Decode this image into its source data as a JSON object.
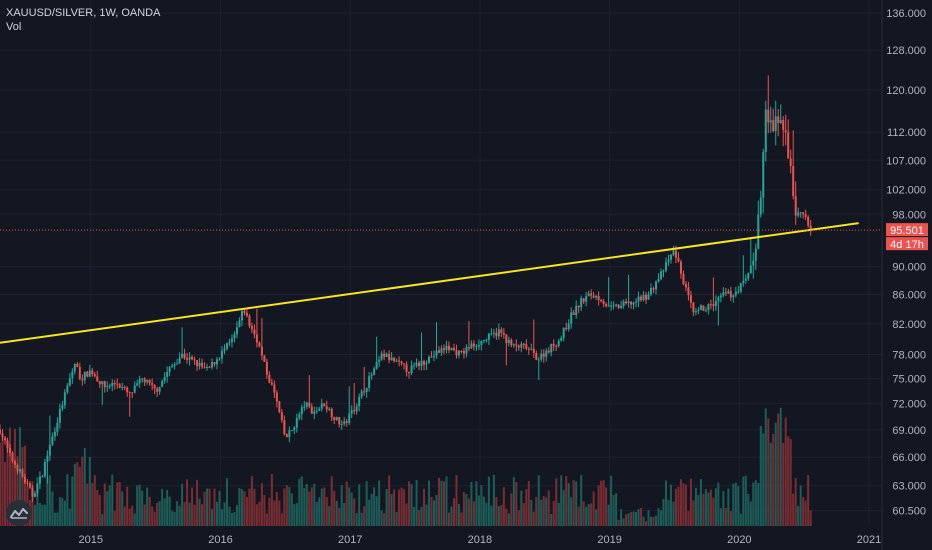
{
  "header": {
    "symbol_line": "XAUUSD/SILVER, 1W, OANDA",
    "indicator": "Vol"
  },
  "colors": {
    "background": "#131722",
    "grid": "#1e2230",
    "up": "#26a69a",
    "down": "#ef5350",
    "vol_up": "#1e5e58",
    "vol_down": "#7a2e33",
    "trendline": "#f5e71b",
    "price_line": "#ef5350",
    "axis_text": "#b2b5be"
  },
  "chart_data": {
    "type": "candlestick",
    "x_ticks": [
      "2015",
      "2016",
      "2017",
      "2018",
      "2019",
      "2020",
      "2021"
    ],
    "y_ticks": [
      136.0,
      128.0,
      120.0,
      112.0,
      107.0,
      102.0,
      98.0,
      90.0,
      86.0,
      82.0,
      78.0,
      75.0,
      72.0,
      69.0,
      66.0,
      63.0,
      60.5
    ],
    "y_tick_labels": [
      "136.000",
      "128.000",
      "120.000",
      "112.000",
      "107.000",
      "102.000",
      "98.000",
      "90.000",
      "86.000",
      "82.000",
      "78.000",
      "75.000",
      "72.000",
      "69.000",
      "66.000",
      "63.000",
      "60.500"
    ],
    "y_scale": "log",
    "ylim": [
      59.0,
      138.0
    ],
    "xlim": [
      2014.3,
      2021.1
    ],
    "last_price": 95.501,
    "last_price_label": "95.501",
    "countdown_label": "4d 17h",
    "trendline": [
      [
        2014.3,
        79.5
      ],
      [
        2020.92,
        96.6
      ]
    ],
    "anchors": [
      [
        2014.3,
        69
      ],
      [
        2014.38,
        66
      ],
      [
        2014.45,
        64.5
      ],
      [
        2014.55,
        62
      ],
      [
        2014.62,
        64
      ],
      [
        2014.72,
        69
      ],
      [
        2014.8,
        73
      ],
      [
        2014.88,
        77
      ],
      [
        2014.92,
        75
      ],
      [
        2015.0,
        76
      ],
      [
        2015.1,
        74
      ],
      [
        2015.2,
        74.5
      ],
      [
        2015.3,
        73
      ],
      [
        2015.4,
        75
      ],
      [
        2015.5,
        73.5
      ],
      [
        2015.6,
        76
      ],
      [
        2015.7,
        78
      ],
      [
        2015.8,
        77
      ],
      [
        2015.9,
        76
      ],
      [
        2016.0,
        78
      ],
      [
        2016.1,
        80
      ],
      [
        2016.18,
        84
      ],
      [
        2016.22,
        82
      ],
      [
        2016.28,
        80
      ],
      [
        2016.35,
        76
      ],
      [
        2016.42,
        73
      ],
      [
        2016.5,
        68
      ],
      [
        2016.55,
        69
      ],
      [
        2016.65,
        72
      ],
      [
        2016.72,
        71
      ],
      [
        2016.8,
        72
      ],
      [
        2016.9,
        70
      ],
      [
        2016.95,
        69.5
      ],
      [
        2017.05,
        72
      ],
      [
        2017.15,
        75
      ],
      [
        2017.25,
        78
      ],
      [
        2017.35,
        77
      ],
      [
        2017.45,
        76
      ],
      [
        2017.55,
        77
      ],
      [
        2017.65,
        78
      ],
      [
        2017.75,
        79
      ],
      [
        2017.85,
        78
      ],
      [
        2017.92,
        79
      ],
      [
        2018.05,
        80
      ],
      [
        2018.15,
        81
      ],
      [
        2018.25,
        79
      ],
      [
        2018.35,
        79
      ],
      [
        2018.45,
        77.5
      ],
      [
        2018.55,
        79
      ],
      [
        2018.62,
        80
      ],
      [
        2018.7,
        83
      ],
      [
        2018.78,
        85
      ],
      [
        2018.85,
        86
      ],
      [
        2018.93,
        85.5
      ],
      [
        2019.0,
        84
      ],
      [
        2019.1,
        84.5
      ],
      [
        2019.2,
        85
      ],
      [
        2019.3,
        86
      ],
      [
        2019.4,
        89
      ],
      [
        2019.5,
        92.5
      ],
      [
        2019.55,
        89
      ],
      [
        2019.6,
        86
      ],
      [
        2019.65,
        83
      ],
      [
        2019.7,
        84
      ],
      [
        2019.8,
        84.5
      ],
      [
        2019.88,
        86
      ],
      [
        2019.95,
        86
      ],
      [
        2020.05,
        88
      ],
      [
        2020.12,
        92
      ],
      [
        2020.17,
        102
      ],
      [
        2020.2,
        115
      ],
      [
        2020.25,
        113
      ],
      [
        2020.3,
        113
      ],
      [
        2020.35,
        114
      ],
      [
        2020.38,
        108
      ],
      [
        2020.42,
        100
      ],
      [
        2020.45,
        98
      ],
      [
        2020.5,
        98
      ],
      [
        2020.52,
        97
      ],
      [
        2020.55,
        95.5
      ]
    ]
  }
}
